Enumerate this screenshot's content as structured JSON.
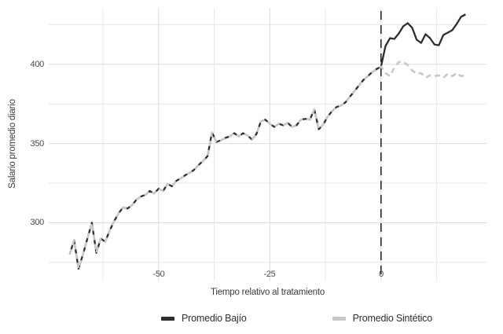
{
  "chart_data": {
    "type": "line",
    "title": "",
    "xlabel": "Tiempo relativo al tratamiento",
    "ylabel": "Salario promedio diario",
    "legend_position": "bottom",
    "grid": true,
    "background": "#ffffff",
    "colors": {
      "bajio_line": "#2e2e2e",
      "sintetico_line": "#c8c8c8",
      "treatment_line": "#1a1a1a",
      "major_gridline": "#dcdcdc",
      "minor_gridline": "#e8e8e8",
      "text": "#3c3c3c"
    },
    "xlim": [
      -74.7,
      23.7
    ],
    "ylim": [
      263,
      435.6
    ],
    "x_ticks": [
      -50,
      -25,
      0
    ],
    "x_tick_labels": [
      "-50",
      "-25",
      "0"
    ],
    "x_minor_grid": [
      -62.5,
      -37.5,
      -12.5,
      12.5
    ],
    "y_ticks": [
      300,
      350,
      400
    ],
    "y_tick_labels": [
      "300",
      "350",
      "400"
    ],
    "y_minor_grid": [
      275,
      325,
      375,
      425
    ],
    "treatment_line_x": 0,
    "x": [
      -70,
      -69,
      -68,
      -67,
      -66,
      -65,
      -64,
      -63,
      -62,
      -61,
      -60,
      -59,
      -58,
      -57,
      -56,
      -55,
      -54,
      -53,
      -52,
      -51,
      -50,
      -49,
      -48,
      -47,
      -46,
      -45,
      -44,
      -43,
      -42,
      -41,
      -40,
      -39,
      -38,
      -37,
      -36,
      -35,
      -34,
      -33,
      -32,
      -31,
      -30,
      -29,
      -28,
      -27,
      -26,
      -25,
      -24,
      -23,
      -22,
      -21,
      -20,
      -19,
      -18,
      -17,
      -16,
      -15,
      -14,
      -13,
      -12,
      -11,
      -10,
      -9,
      -8,
      -7,
      -6,
      -5,
      -4,
      -3,
      -2,
      -1,
      0,
      1,
      2,
      3,
      4,
      5,
      6,
      7,
      8,
      9,
      10,
      11,
      12,
      13,
      14,
      15,
      16,
      17,
      18,
      19
    ],
    "series": [
      {
        "name": "Promedio Bajío",
        "style": "solid",
        "values": [
          280,
          289,
          271,
          280,
          290,
          300,
          281,
          290,
          288,
          295,
          301,
          306,
          309.5,
          309,
          311,
          314.5,
          316.5,
          317.5,
          320,
          318.5,
          321.5,
          320,
          324.5,
          323,
          326.5,
          328,
          330,
          331.5,
          333.5,
          336.5,
          339,
          342,
          357,
          351,
          352,
          353.5,
          354.5,
          356.5,
          354.5,
          356.5,
          355,
          352.5,
          356,
          364,
          365,
          362.5,
          360.5,
          362.5,
          361.5,
          363,
          360.5,
          361.5,
          365,
          365.5,
          365,
          371.5,
          359,
          362,
          367,
          370.5,
          373,
          374,
          376,
          379.5,
          383,
          386.5,
          390,
          392.5,
          395,
          397,
          398.5,
          411.5,
          416.5,
          416,
          419.5,
          424,
          426,
          423,
          415.5,
          413.5,
          419,
          416.5,
          412.5,
          412,
          418.5,
          420,
          421.5,
          425.5,
          430,
          431.5
        ]
      },
      {
        "name": "Promedio Sintético",
        "style": "dashed",
        "values": [
          280,
          289,
          271,
          280,
          290,
          300,
          281,
          290,
          288,
          295,
          301,
          306,
          309.5,
          309,
          311,
          314.5,
          316.5,
          317.5,
          320,
          318.5,
          321.5,
          320,
          324.5,
          323,
          326.5,
          328,
          330,
          331.5,
          333.5,
          336.5,
          339,
          342,
          357,
          351,
          352,
          353.5,
          354.5,
          356.5,
          354.5,
          356.5,
          355,
          352.5,
          356,
          364,
          365,
          362.5,
          360.5,
          362.5,
          361.5,
          363,
          360.5,
          361.5,
          365,
          365.5,
          365,
          371.5,
          359,
          362,
          367,
          370.5,
          373,
          374,
          376,
          379.5,
          383,
          386.5,
          390,
          392.5,
          395,
          397,
          398.5,
          394.5,
          392.5,
          398,
          401.5,
          401.5,
          399.5,
          396,
          394,
          394.5,
          391.5,
          393,
          392.5,
          393,
          391.5,
          394,
          392.5,
          394.5,
          392.5,
          393
        ]
      }
    ]
  }
}
